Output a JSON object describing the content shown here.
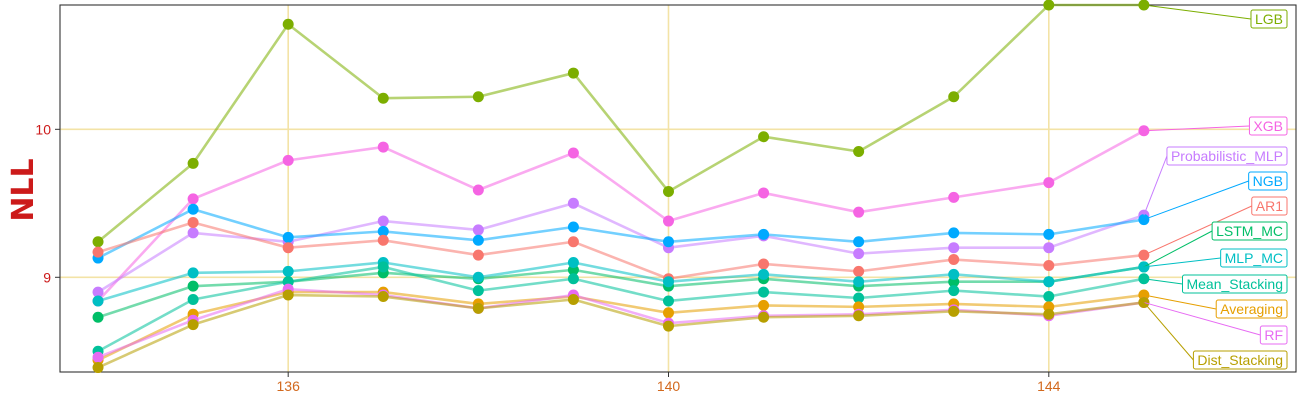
{
  "chart_data": {
    "type": "line",
    "ylabel": "NLL",
    "x": [
      134,
      135,
      136,
      137,
      138,
      139,
      140,
      141,
      142,
      143,
      144,
      145
    ],
    "xticks": [
      "136",
      "140",
      "144"
    ],
    "yticks": [
      "9",
      "10"
    ],
    "xlim": [
      133.6,
      146.6
    ],
    "ylim": [
      8.36,
      10.84
    ],
    "grid": true,
    "legend_placement": "right (direct labels)",
    "series": [
      {
        "name": "LGB",
        "color": "#7cae00",
        "values": [
          9.24,
          9.77,
          10.71,
          10.21,
          10.22,
          10.38,
          9.58,
          9.95,
          9.85,
          10.22,
          10.84,
          10.84
        ]
      },
      {
        "name": "XGB",
        "color": "#f564e3",
        "values": [
          8.84,
          9.53,
          9.79,
          9.88,
          9.59,
          9.84,
          9.38,
          9.57,
          9.44,
          9.54,
          9.64,
          9.99
        ]
      },
      {
        "name": "Probabilistic_MLP",
        "color": "#c77cff",
        "values": [
          8.9,
          9.3,
          9.24,
          9.38,
          9.32,
          9.5,
          9.2,
          9.28,
          9.16,
          9.2,
          9.2,
          9.42
        ]
      },
      {
        "name": "NGB",
        "color": "#00a9ff",
        "values": [
          9.13,
          9.46,
          9.27,
          9.31,
          9.25,
          9.34,
          9.24,
          9.29,
          9.24,
          9.3,
          9.29,
          9.39
        ]
      },
      {
        "name": "AR1",
        "color": "#f8766d",
        "values": [
          9.17,
          9.37,
          9.2,
          9.25,
          9.15,
          9.24,
          8.99,
          9.09,
          9.04,
          9.12,
          9.08,
          9.15
        ]
      },
      {
        "name": "LSTM_MC",
        "color": "#00be67",
        "values": [
          8.73,
          8.94,
          8.97,
          9.03,
          8.99,
          9.05,
          8.94,
          8.99,
          8.94,
          8.97,
          8.97,
          9.07
        ]
      },
      {
        "name": "MLP_MC",
        "color": "#00bfc4",
        "values": [
          8.84,
          9.03,
          9.04,
          9.1,
          9.0,
          9.1,
          8.97,
          9.02,
          8.97,
          9.02,
          8.97,
          9.07
        ]
      },
      {
        "name": "Mean_Stacking",
        "color": "#00c19a",
        "values": [
          8.5,
          8.85,
          8.97,
          9.07,
          8.91,
          8.99,
          8.84,
          8.9,
          8.86,
          8.91,
          8.87,
          8.99
        ]
      },
      {
        "name": "Averaging",
        "color": "#e69f00",
        "values": [
          8.44,
          8.75,
          8.9,
          8.9,
          8.82,
          8.87,
          8.76,
          8.81,
          8.8,
          8.82,
          8.8,
          8.88
        ]
      },
      {
        "name": "RF",
        "color": "#e76bf3",
        "values": [
          8.46,
          8.71,
          8.92,
          8.88,
          8.79,
          8.88,
          8.69,
          8.74,
          8.75,
          8.78,
          8.74,
          8.83
        ]
      },
      {
        "name": "Dist_Stacking",
        "color": "#b79f00",
        "values": [
          8.39,
          8.68,
          8.88,
          8.87,
          8.79,
          8.85,
          8.67,
          8.73,
          8.74,
          8.77,
          8.75,
          8.83
        ]
      }
    ]
  }
}
